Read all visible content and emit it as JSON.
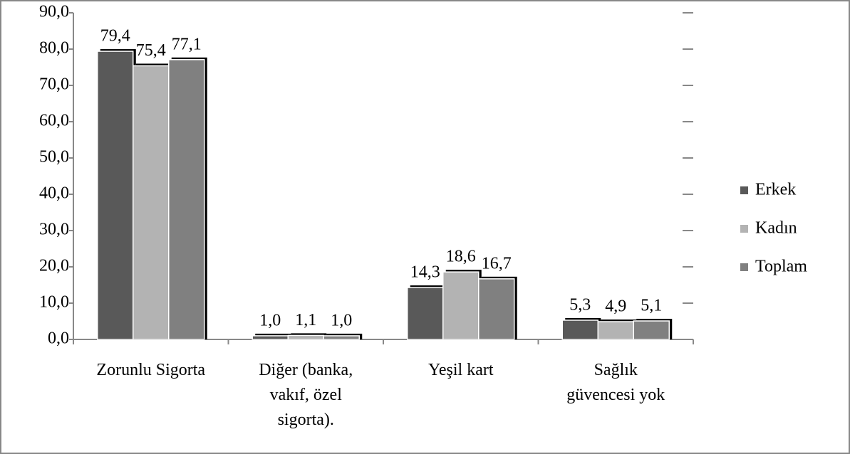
{
  "chart_data": {
    "type": "bar",
    "categories": [
      "Zorunlu Sigorta",
      "Diğer (banka, vakıf, özel sigorta).",
      "Yeşil kart",
      "Sağlık güvencesi yok"
    ],
    "series": [
      {
        "name": "Erkek",
        "color": "#595959",
        "values": [
          79.4,
          1.0,
          14.3,
          5.3
        ],
        "value_labels": [
          "79,4",
          "1,0",
          "14,3",
          "5,3"
        ]
      },
      {
        "name": "Kadın",
        "color": "#b3b3b3",
        "values": [
          75.4,
          1.1,
          18.6,
          4.9
        ],
        "value_labels": [
          "75,4",
          "1,1",
          "18,6",
          "4,9"
        ]
      },
      {
        "name": "Toplam",
        "color": "#808080",
        "values": [
          77.1,
          1.0,
          16.7,
          5.1
        ],
        "value_labels": [
          "77,1",
          "1,0",
          "16,7",
          "5,1"
        ]
      }
    ],
    "ylim": [
      0,
      90
    ],
    "yticks": [
      {
        "value": 0,
        "label": "0,0"
      },
      {
        "value": 10,
        "label": "10,0"
      },
      {
        "value": 20,
        "label": "20,0"
      },
      {
        "value": 30,
        "label": "30,0"
      },
      {
        "value": 40,
        "label": "40,0"
      },
      {
        "value": 50,
        "label": "50,0"
      },
      {
        "value": 60,
        "label": "60,0"
      },
      {
        "value": 70,
        "label": "70,0"
      },
      {
        "value": 80,
        "label": "80,0"
      },
      {
        "value": 90,
        "label": "90,0"
      }
    ],
    "grid": true,
    "legend": "right"
  }
}
